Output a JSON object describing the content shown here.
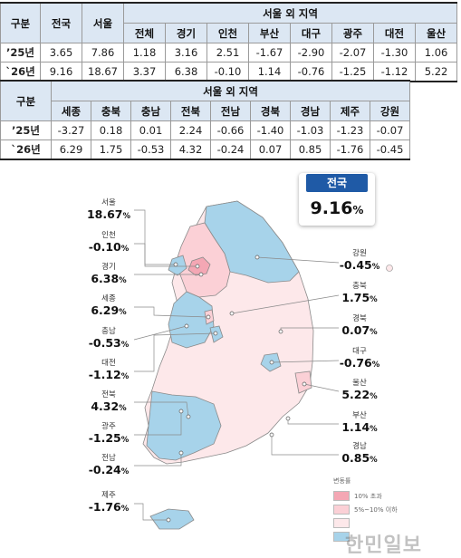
{
  "table1": {
    "col_group": "구분",
    "col_national": "전국",
    "col_seoul": "서울",
    "col_outside": "서울 외 지역",
    "sub_headers": [
      "전체",
      "경기",
      "인천",
      "부산",
      "대구",
      "광주",
      "대전",
      "울산"
    ],
    "rows": [
      {
        "label": "’25년",
        "values": [
          "3.65",
          "7.86",
          "1.18",
          "3.16",
          "2.51",
          "-1.67",
          "-2.90",
          "-2.07",
          "-1.30",
          "1.06"
        ]
      },
      {
        "label": "`26년",
        "values": [
          "9.16",
          "18.67",
          "3.37",
          "6.38",
          "-0.10",
          "1.14",
          "-0.76",
          "-1.25",
          "-1.12",
          "5.22"
        ]
      }
    ]
  },
  "table2": {
    "col_group": "구분",
    "col_outside": "서울 외 지역",
    "sub_headers": [
      "세종",
      "충북",
      "충남",
      "전북",
      "전남",
      "경북",
      "경남",
      "제주",
      "강원"
    ],
    "rows": [
      {
        "label": "’25년",
        "values": [
          "-3.27",
          "0.18",
          "0.01",
          "2.24",
          "-0.66",
          "-1.40",
          "-1.03",
          "-1.23",
          "-0.07"
        ]
      },
      {
        "label": "`26년",
        "values": [
          "6.29",
          "1.75",
          "-0.53",
          "4.32",
          "-0.24",
          "0.07",
          "0.85",
          "-1.76",
          "-0.45"
        ]
      }
    ]
  },
  "national": {
    "label": "전국",
    "value": "9.16",
    "unit": "%"
  },
  "callouts": {
    "seoul": {
      "name": "서울",
      "value": "18.67"
    },
    "incheon": {
      "name": "인천",
      "value": "-0.10"
    },
    "gyeonggi": {
      "name": "경기",
      "value": "6.38"
    },
    "sejong": {
      "name": "세종",
      "value": "6.29"
    },
    "chungnam": {
      "name": "충남",
      "value": "-0.53"
    },
    "daejeon": {
      "name": "대전",
      "value": "-1.12"
    },
    "jeonbuk": {
      "name": "전북",
      "value": "4.32"
    },
    "gwangju": {
      "name": "광주",
      "value": "-1.25"
    },
    "jeonnam": {
      "name": "전남",
      "value": "-0.24"
    },
    "jeju": {
      "name": "제주",
      "value": "-1.76"
    },
    "gangwon": {
      "name": "강원",
      "value": "-0.45"
    },
    "chungbuk": {
      "name": "충북",
      "value": "1.75"
    },
    "gyeongbuk": {
      "name": "경북",
      "value": "0.07"
    },
    "daegu": {
      "name": "대구",
      "value": "-0.76"
    },
    "ulsan": {
      "name": "울산",
      "value": "5.22"
    },
    "busan": {
      "name": "부산",
      "value": "1.14"
    },
    "gyeongnam": {
      "name": "경남",
      "value": "0.85"
    }
  },
  "unit": "%",
  "legend": {
    "title": "변동률",
    "items": [
      {
        "label": "10% 초과",
        "color": "#f4a7b4"
      },
      {
        "label": "5%~10% 이하",
        "color": "#fbd0d6"
      },
      {
        "label": "",
        "color": "#fde8ea"
      },
      {
        "label": "",
        "color": "#a7d3ea"
      }
    ]
  },
  "colors": {
    "header_bg": "#dce7f3",
    "rise_strong": "#f4a7b4",
    "rise_mid": "#fbd0d6",
    "rise_low": "#fde8ea",
    "fall": "#a7d3ea",
    "national_badge": "#1f5aa6"
  },
  "watermark": "한민일보"
}
